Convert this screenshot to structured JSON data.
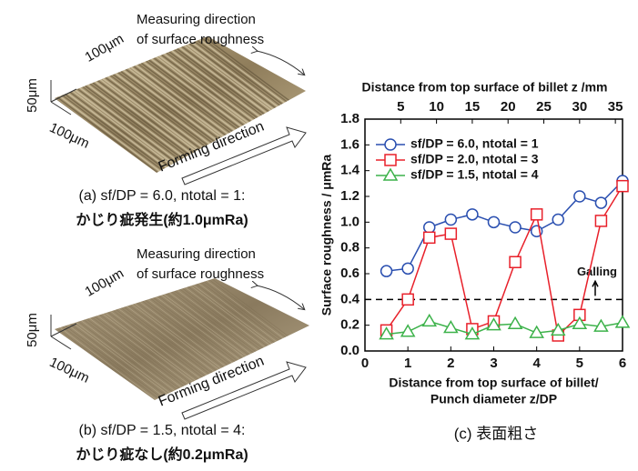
{
  "panels": [
    {
      "measuring_direction": [
        "Measuring direction",
        "of surface roughness"
      ],
      "scale_labels": [
        "50μm",
        "100μm",
        "100μm"
      ],
      "forming_direction": "Forming direction",
      "caption": [
        "(a) sf/DP = 6.0, ntotal = 1:",
        "かじり疵発生(約1.0μmRa)"
      ]
    },
    {
      "measuring_direction": [
        "Measuring direction",
        "of surface roughness"
      ],
      "scale_labels": [
        "50μm",
        "100μm",
        "100μm"
      ],
      "forming_direction": "Forming direction",
      "caption": [
        "(b) sf/DP = 1.5, ntotal = 4:",
        "かじり疵なし(約0.2μmRa)"
      ]
    }
  ],
  "chart_data": {
    "type": "line",
    "x_label": [
      "Distance from top surface of billet/",
      "Punch diameter z/DP"
    ],
    "x2_label": "Distance from top surface of billet z /mm",
    "y_label": "Surface roughness / μmRa",
    "caption": "(c) 表面粗さ",
    "xlim": [
      0,
      6
    ],
    "xticks": [
      0,
      1,
      2,
      3,
      4,
      5,
      6
    ],
    "x2lim": [
      0,
      36
    ],
    "x2ticks": [
      5,
      10,
      15,
      20,
      25,
      30,
      35
    ],
    "ylim": [
      0,
      1.8
    ],
    "yticks": [
      {
        "value": 0,
        "label": "0.0"
      },
      0.2,
      0.4,
      0.6,
      0.8,
      {
        "value": 1,
        "label": "1.0"
      },
      1.2,
      1.4,
      1.6,
      1.8
    ],
    "legend": "upper left",
    "threshold": {
      "value": 0.4,
      "label": "Galling"
    },
    "x": [
      0.5,
      1,
      1.5,
      2,
      2.5,
      3,
      3.5,
      4,
      4.5,
      5,
      5.5,
      6
    ],
    "series": [
      {
        "name": "sf/DP = 6.0, ntotal = 1",
        "color": "#2a4fb0",
        "marker": "circle",
        "values": [
          0.62,
          0.64,
          0.96,
          1.02,
          1.06,
          1.0,
          0.96,
          0.93,
          1.02,
          1.2,
          1.15,
          1.32
        ]
      },
      {
        "name": "sf/DP = 2.0, ntotal = 3",
        "color": "#e8202a",
        "marker": "square",
        "values": [
          0.16,
          0.4,
          0.88,
          0.91,
          0.17,
          0.23,
          0.69,
          1.06,
          0.12,
          0.28,
          1.01,
          1.28
        ]
      },
      {
        "name": "sf/DP = 1.5, ntotal = 4",
        "color": "#3cb24a",
        "marker": "triangle",
        "values": [
          0.13,
          0.15,
          0.23,
          0.18,
          0.13,
          0.2,
          0.21,
          0.14,
          0.16,
          0.21,
          0.19,
          0.22
        ]
      }
    ]
  }
}
